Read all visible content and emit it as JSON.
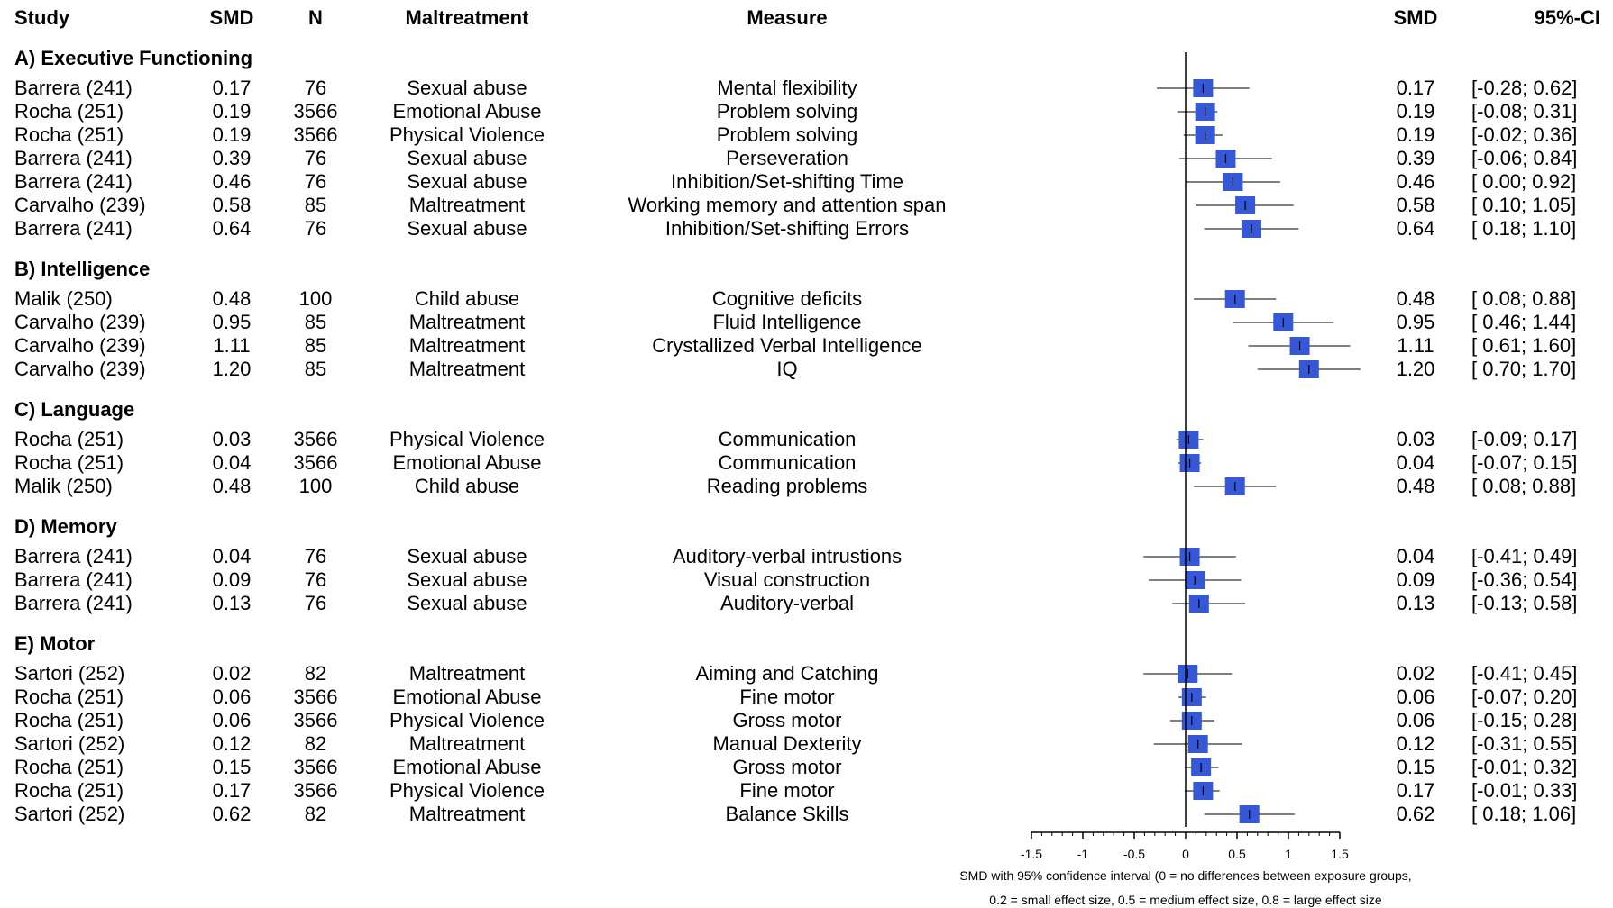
{
  "headers": {
    "study": "Study",
    "smd": "SMD",
    "n": "N",
    "maltreatment": "Maltreatment",
    "measure": "Measure",
    "smd_right": "SMD",
    "ci": "95%-CI"
  },
  "chart_data": {
    "type": "forest",
    "xlim": [
      -1.5,
      1.5
    ],
    "x_ticks": [
      "-1.5",
      "-1",
      "-0.5",
      "0",
      "0.5",
      "1",
      "1.5"
    ],
    "x_tick_values": [
      -1.5,
      -1,
      -0.5,
      0,
      0.5,
      1,
      1.5
    ],
    "reference_line": 0,
    "caption_line1": "SMD with 95% confidence interval (0 = no differences between exposure groups,",
    "caption_line2": "0.2 = small effect size, 0.5 = medium effect size, 0.8 = large effect size",
    "marker_color": "#3657d6",
    "sections": [
      {
        "title": "A) Executive Functioning",
        "rows": [
          {
            "study": "Barrera (241)",
            "smd": "0.17",
            "n": "76",
            "maltreatment": "Sexual abuse",
            "measure": "Mental flexibility",
            "ci": "[-0.28; 0.62]",
            "est": 0.17,
            "lo": -0.28,
            "hi": 0.62
          },
          {
            "study": "Rocha (251)",
            "smd": "0.19",
            "n": "3566",
            "maltreatment": "Emotional Abuse",
            "measure": "Problem solving",
            "ci": "[-0.08; 0.31]",
            "est": 0.19,
            "lo": -0.08,
            "hi": 0.31
          },
          {
            "study": "Rocha (251)",
            "smd": "0.19",
            "n": "3566",
            "maltreatment": "Physical Violence",
            "measure": "Problem solving",
            "ci": "[-0.02; 0.36]",
            "est": 0.19,
            "lo": -0.02,
            "hi": 0.36
          },
          {
            "study": "Barrera (241)",
            "smd": "0.39",
            "n": "76",
            "maltreatment": "Sexual abuse",
            "measure": "Perseveration",
            "ci": "[-0.06; 0.84]",
            "est": 0.39,
            "lo": -0.06,
            "hi": 0.84
          },
          {
            "study": "Barrera (241)",
            "smd": "0.46",
            "n": "76",
            "maltreatment": "Sexual abuse",
            "measure": "Inhibition/Set-shifting Time",
            "ci": "[ 0.00; 0.92]",
            "est": 0.46,
            "lo": 0.0,
            "hi": 0.92
          },
          {
            "study": "Carvalho (239)",
            "smd": "0.58",
            "n": "85",
            "maltreatment": "Maltreatment",
            "measure": "Working memory and attention span",
            "ci": "[ 0.10; 1.05]",
            "est": 0.58,
            "lo": 0.1,
            "hi": 1.05
          },
          {
            "study": "Barrera (241)",
            "smd": "0.64",
            "n": "76",
            "maltreatment": "Sexual abuse",
            "measure": "Inhibition/Set-shifting Errors",
            "ci": "[ 0.18; 1.10]",
            "est": 0.64,
            "lo": 0.18,
            "hi": 1.1
          }
        ]
      },
      {
        "title": "B) Intelligence",
        "rows": [
          {
            "study": "Malik (250)",
            "smd": "0.48",
            "n": "100",
            "maltreatment": "Child abuse",
            "measure": "Cognitive deficits",
            "ci": "[ 0.08; 0.88]",
            "est": 0.48,
            "lo": 0.08,
            "hi": 0.88
          },
          {
            "study": "Carvalho (239)",
            "smd": "0.95",
            "n": "85",
            "maltreatment": "Maltreatment",
            "measure": "Fluid Intelligence",
            "ci": "[ 0.46; 1.44]",
            "est": 0.95,
            "lo": 0.46,
            "hi": 1.44
          },
          {
            "study": "Carvalho (239)",
            "smd": "1.11",
            "n": "85",
            "maltreatment": "Maltreatment",
            "measure": "Crystallized Verbal Intelligence",
            "ci": "[ 0.61; 1.60]",
            "est": 1.11,
            "lo": 0.61,
            "hi": 1.6
          },
          {
            "study": "Carvalho (239)",
            "smd": "1.20",
            "n": "85",
            "maltreatment": "Maltreatment",
            "measure": "IQ",
            "ci": "[ 0.70; 1.70]",
            "est": 1.2,
            "lo": 0.7,
            "hi": 1.7
          }
        ]
      },
      {
        "title": "C) Language",
        "rows": [
          {
            "study": "Rocha (251)",
            "smd": "0.03",
            "n": "3566",
            "maltreatment": "Physical Violence",
            "measure": "Communication",
            "ci": "[-0.09; 0.17]",
            "est": 0.03,
            "lo": -0.09,
            "hi": 0.17
          },
          {
            "study": "Rocha (251)",
            "smd": "0.04",
            "n": "3566",
            "maltreatment": "Emotional Abuse",
            "measure": "Communication",
            "ci": "[-0.07; 0.15]",
            "est": 0.04,
            "lo": -0.07,
            "hi": 0.15
          },
          {
            "study": "Malik (250)",
            "smd": "0.48",
            "n": "100",
            "maltreatment": "Child abuse",
            "measure": "Reading problems",
            "ci": "[ 0.08; 0.88]",
            "est": 0.48,
            "lo": 0.08,
            "hi": 0.88
          }
        ]
      },
      {
        "title": "D) Memory",
        "rows": [
          {
            "study": "Barrera (241)",
            "smd": "0.04",
            "n": "76",
            "maltreatment": "Sexual abuse",
            "measure": "Auditory-verbal intrustions",
            "ci": "[-0.41; 0.49]",
            "est": 0.04,
            "lo": -0.41,
            "hi": 0.49
          },
          {
            "study": "Barrera (241)",
            "smd": "0.09",
            "n": "76",
            "maltreatment": "Sexual abuse",
            "measure": "Visual construction",
            "ci": "[-0.36; 0.54]",
            "est": 0.09,
            "lo": -0.36,
            "hi": 0.54
          },
          {
            "study": "Barrera (241)",
            "smd": "0.13",
            "n": "76",
            "maltreatment": "Sexual abuse",
            "measure": "Auditory-verbal",
            "ci": "[-0.13; 0.58]",
            "est": 0.13,
            "lo": -0.13,
            "hi": 0.58
          }
        ]
      },
      {
        "title": "E) Motor",
        "rows": [
          {
            "study": "Sartori (252)",
            "smd": "0.02",
            "n": "82",
            "maltreatment": "Maltreatment",
            "measure": "Aiming and Catching",
            "ci": "[-0.41; 0.45]",
            "est": 0.02,
            "lo": -0.41,
            "hi": 0.45
          },
          {
            "study": "Rocha (251)",
            "smd": "0.06",
            "n": "3566",
            "maltreatment": "Emotional Abuse",
            "measure": "Fine motor",
            "ci": "[-0.07; 0.20]",
            "est": 0.06,
            "lo": -0.07,
            "hi": 0.2
          },
          {
            "study": "Rocha (251)",
            "smd": "0.06",
            "n": "3566",
            "maltreatment": "Physical Violence",
            "measure": "Gross motor",
            "ci": "[-0.15; 0.28]",
            "est": 0.06,
            "lo": -0.15,
            "hi": 0.28
          },
          {
            "study": "Sartori (252)",
            "smd": "0.12",
            "n": "82",
            "maltreatment": "Maltreatment",
            "measure": "Manual Dexterity",
            "ci": "[-0.31; 0.55]",
            "est": 0.12,
            "lo": -0.31,
            "hi": 0.55
          },
          {
            "study": "Rocha (251)",
            "smd": "0.15",
            "n": "3566",
            "maltreatment": "Emotional Abuse",
            "measure": "Gross motor",
            "ci": "[-0.01; 0.32]",
            "est": 0.15,
            "lo": -0.01,
            "hi": 0.32
          },
          {
            "study": "Rocha (251)",
            "smd": "0.17",
            "n": "3566",
            "maltreatment": "Physical Violence",
            "measure": "Fine motor",
            "ci": "[-0.01; 0.33]",
            "est": 0.17,
            "lo": -0.01,
            "hi": 0.33
          },
          {
            "study": "Sartori (252)",
            "smd": "0.62",
            "n": "82",
            "maltreatment": "Maltreatment",
            "measure": "Balance Skills",
            "ci": "[ 0.18; 1.06]",
            "est": 0.62,
            "lo": 0.18,
            "hi": 1.06
          }
        ]
      }
    ]
  }
}
